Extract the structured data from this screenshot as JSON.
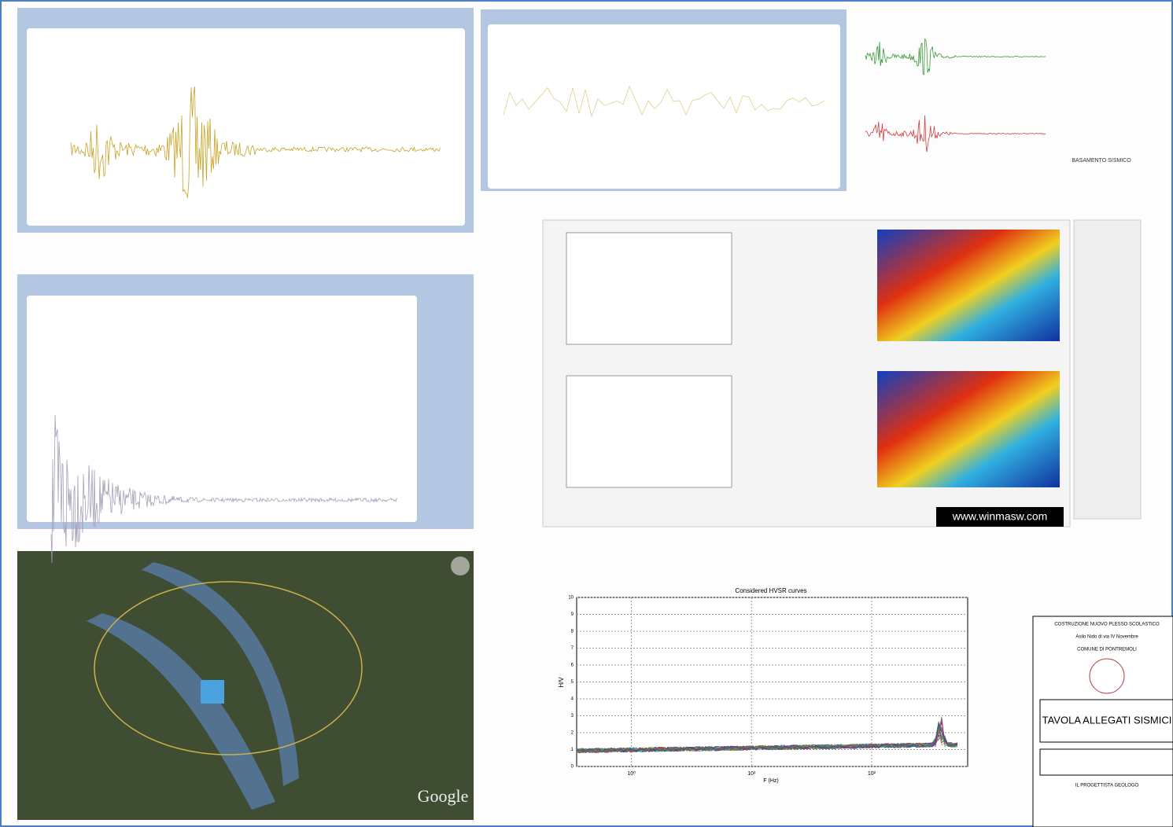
{
  "panels": {
    "basement_label": "BASAMENTO SISMICO",
    "winmasw_logo": "www.winmasw.com",
    "map_logo": "Google"
  },
  "hvsr": {
    "title": "Considered HVSR curves",
    "ylabel": "H/V",
    "xlabel": "F (Hz)",
    "ylim": [
      0,
      10
    ],
    "yticks": [
      0,
      1,
      2,
      3,
      4,
      5,
      6,
      7,
      8,
      9,
      10
    ],
    "xlim": [
      0.35,
      630
    ],
    "log_x": true,
    "grid": true,
    "xticks": [
      {
        "value": 1,
        "label": "10⁰"
      },
      {
        "value": 10,
        "label": "10¹"
      },
      {
        "value": 100,
        "label": "10²"
      }
    ]
  },
  "title_block": {
    "lines": [
      "COSTRUZIONE NUOVO PLESSO SCOLASTICO",
      "Asilo Nido di via IV Novembre",
      "COMUNE DI PONTREMOLI"
    ],
    "title": "TAVOLA ALLEGATI SISMICI",
    "signature": "IL PROGETTISTA GEOLOGO"
  }
}
